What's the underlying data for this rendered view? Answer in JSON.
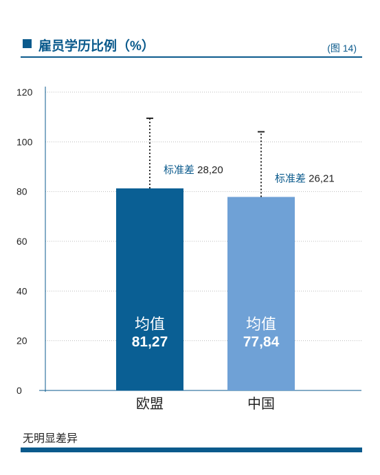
{
  "header": {
    "title": "雇员学历比例（%）",
    "figure_ref": "(图 14)"
  },
  "footnote": "无明显差异",
  "chart_data": {
    "type": "bar",
    "title": "雇员学历比例（%）",
    "categories": [
      "欧盟",
      "中国"
    ],
    "values": [
      81.27,
      77.84
    ],
    "value_labels": [
      "81,27",
      "77,84"
    ],
    "value_prefix": "均值",
    "std_labels": [
      "标准差 28,20",
      "标准差 26,21"
    ],
    "std_dev": [
      28.2,
      26.21
    ],
    "y_ticks": [
      0,
      20,
      40,
      60,
      80,
      100,
      120
    ],
    "ylim": [
      0,
      120
    ],
    "grid": true,
    "colors": [
      "#0a5f94",
      "#6fa1d6"
    ],
    "axis_color": "#0a5a8c",
    "std_label_color": "#0a5a8c"
  }
}
